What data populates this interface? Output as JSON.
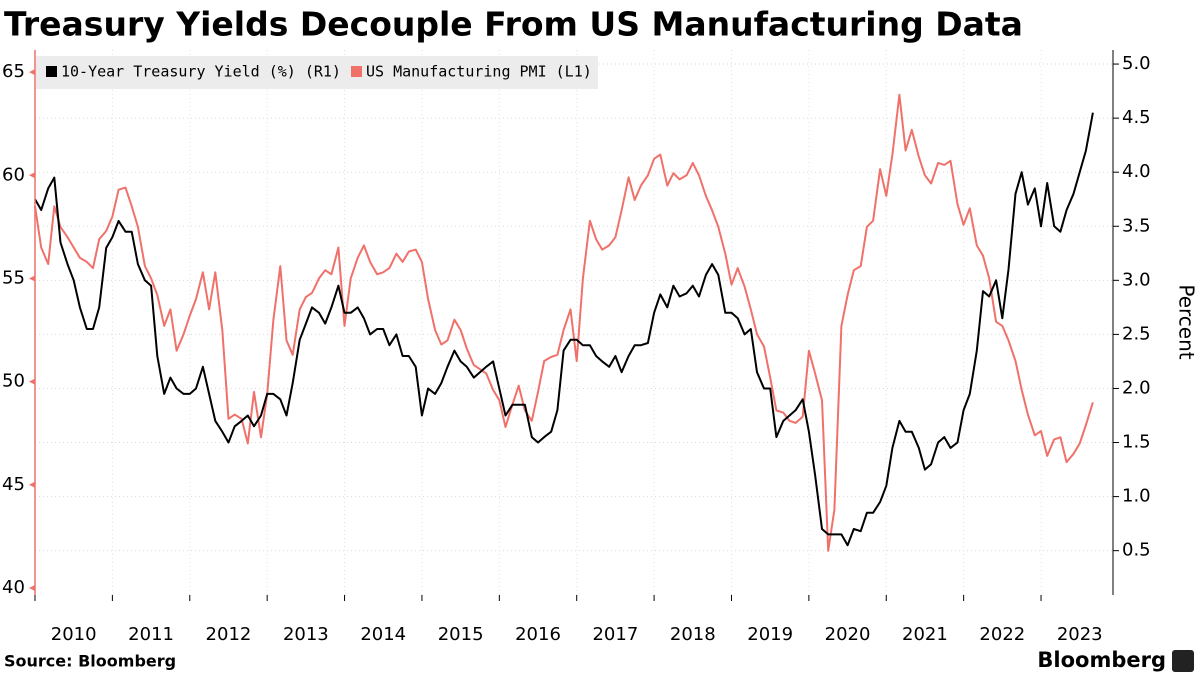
{
  "chart_data": {
    "type": "line",
    "title": "Treasury Yields Decouple From US Manufacturing Data",
    "y2label": "Percent",
    "source": "Source: Bloomberg",
    "brand": "Bloomberg",
    "x": [
      2010,
      2010.08,
      2010.17,
      2010.25,
      2010.33,
      2010.42,
      2010.5,
      2010.58,
      2010.67,
      2010.75,
      2010.83,
      2010.92,
      2011,
      2011.08,
      2011.17,
      2011.25,
      2011.33,
      2011.42,
      2011.5,
      2011.58,
      2011.67,
      2011.75,
      2011.83,
      2011.92,
      2012,
      2012.08,
      2012.17,
      2012.25,
      2012.33,
      2012.42,
      2012.5,
      2012.58,
      2012.67,
      2012.75,
      2012.83,
      2012.92,
      2013,
      2013.08,
      2013.17,
      2013.25,
      2013.33,
      2013.42,
      2013.5,
      2013.58,
      2013.67,
      2013.75,
      2013.83,
      2013.92,
      2014,
      2014.08,
      2014.17,
      2014.25,
      2014.33,
      2014.42,
      2014.5,
      2014.58,
      2014.67,
      2014.75,
      2014.83,
      2014.92,
      2015,
      2015.08,
      2015.17,
      2015.25,
      2015.33,
      2015.42,
      2015.5,
      2015.58,
      2015.67,
      2015.75,
      2015.83,
      2015.92,
      2016,
      2016.08,
      2016.17,
      2016.25,
      2016.33,
      2016.42,
      2016.5,
      2016.58,
      2016.67,
      2016.75,
      2016.83,
      2016.92,
      2017,
      2017.08,
      2017.17,
      2017.25,
      2017.33,
      2017.42,
      2017.5,
      2017.58,
      2017.67,
      2017.75,
      2017.83,
      2017.92,
      2018,
      2018.08,
      2018.17,
      2018.25,
      2018.33,
      2018.42,
      2018.5,
      2018.58,
      2018.67,
      2018.75,
      2018.83,
      2018.92,
      2019,
      2019.08,
      2019.17,
      2019.25,
      2019.33,
      2019.42,
      2019.5,
      2019.58,
      2019.67,
      2019.75,
      2019.83,
      2019.92,
      2020,
      2020.08,
      2020.17,
      2020.25,
      2020.33,
      2020.42,
      2020.5,
      2020.58,
      2020.67,
      2020.75,
      2020.83,
      2020.92,
      2021,
      2021.08,
      2021.17,
      2021.25,
      2021.33,
      2021.42,
      2021.5,
      2021.58,
      2021.67,
      2021.75,
      2021.83,
      2021.92,
      2022,
      2022.08,
      2022.17,
      2022.25,
      2022.33,
      2022.42,
      2022.5,
      2022.58,
      2022.67,
      2022.75,
      2022.83,
      2022.92,
      2023,
      2023.08,
      2023.17,
      2023.25,
      2023.33,
      2023.42,
      2023.5,
      2023.58,
      2023.67
    ],
    "series": [
      {
        "name": "10-Year Treasury Yield (%) (R1)",
        "color": "#000000",
        "axis": "y2",
        "values": [
          3.75,
          3.65,
          3.85,
          3.95,
          3.35,
          3.15,
          3.0,
          2.75,
          2.55,
          2.55,
          2.75,
          3.3,
          3.4,
          3.55,
          3.45,
          3.45,
          3.15,
          3.0,
          2.95,
          2.3,
          1.95,
          2.1,
          2.0,
          1.95,
          1.95,
          2.0,
          2.2,
          1.95,
          1.7,
          1.6,
          1.5,
          1.65,
          1.7,
          1.75,
          1.65,
          1.75,
          1.95,
          1.95,
          1.9,
          1.75,
          2.05,
          2.45,
          2.6,
          2.75,
          2.7,
          2.6,
          2.75,
          2.95,
          2.7,
          2.7,
          2.75,
          2.65,
          2.5,
          2.55,
          2.55,
          2.4,
          2.5,
          2.3,
          2.3,
          2.2,
          1.75,
          2.0,
          1.95,
          2.05,
          2.2,
          2.35,
          2.25,
          2.2,
          2.1,
          2.15,
          2.2,
          2.25,
          2.0,
          1.75,
          1.85,
          1.85,
          1.85,
          1.55,
          1.5,
          1.55,
          1.6,
          1.8,
          2.35,
          2.45,
          2.45,
          2.4,
          2.4,
          2.3,
          2.25,
          2.2,
          2.3,
          2.15,
          2.3,
          2.4,
          2.4,
          2.42,
          2.7,
          2.87,
          2.75,
          2.95,
          2.85,
          2.88,
          2.95,
          2.85,
          3.05,
          3.15,
          3.05,
          2.7,
          2.7,
          2.65,
          2.5,
          2.55,
          2.15,
          2.0,
          2.0,
          1.55,
          1.7,
          1.75,
          1.8,
          1.9,
          1.6,
          1.2,
          0.7,
          0.65,
          0.65,
          0.65,
          0.55,
          0.7,
          0.68,
          0.85,
          0.85,
          0.95,
          1.1,
          1.45,
          1.7,
          1.6,
          1.6,
          1.45,
          1.25,
          1.3,
          1.5,
          1.55,
          1.45,
          1.5,
          1.8,
          1.95,
          2.35,
          2.9,
          2.85,
          3.0,
          2.65,
          3.1,
          3.8,
          4.0,
          3.7,
          3.85,
          3.5,
          3.9,
          3.5,
          3.45,
          3.65,
          3.8,
          4.0,
          4.2,
          4.55
        ]
      },
      {
        "name": "US Manufacturing PMI (L1)",
        "color": "#f0716a",
        "axis": "y",
        "values": [
          58.5,
          56.5,
          55.7,
          58.5,
          57.5,
          57.0,
          56.5,
          56.0,
          55.8,
          55.5,
          56.9,
          57.3,
          58.0,
          59.3,
          59.4,
          58.5,
          57.5,
          55.6,
          55.0,
          54.2,
          52.7,
          53.5,
          51.5,
          52.3,
          53.2,
          54.0,
          55.3,
          53.5,
          55.3,
          52.5,
          48.2,
          48.4,
          48.2,
          47.0,
          49.5,
          47.3,
          49.4,
          53.0,
          55.6,
          52.0,
          51.3,
          53.5,
          54.1,
          54.3,
          55.0,
          55.4,
          55.2,
          56.5,
          52.7,
          55.0,
          56.0,
          56.6,
          55.8,
          55.2,
          55.3,
          55.5,
          56.2,
          55.8,
          56.3,
          56.4,
          55.8,
          54.0,
          52.5,
          51.8,
          52.0,
          53.0,
          52.5,
          51.6,
          50.8,
          50.6,
          50.4,
          49.6,
          49.1,
          47.8,
          48.9,
          49.8,
          48.6,
          48.1,
          49.5,
          51.0,
          51.2,
          51.3,
          52.5,
          53.5,
          51.0,
          55.0,
          57.8,
          56.9,
          56.4,
          56.6,
          57.0,
          58.3,
          59.9,
          58.8,
          59.5,
          60.0,
          60.8,
          61.0,
          59.5,
          60.1,
          59.8,
          60.0,
          60.6,
          60.0,
          59.0,
          58.3,
          57.5,
          56.2,
          54.7,
          55.5,
          54.6,
          53.5,
          52.3,
          51.7,
          50.2,
          48.6,
          48.5,
          48.1,
          48.0,
          48.3,
          51.5,
          50.4,
          49.1,
          41.8,
          43.8,
          52.7,
          54.2,
          55.4,
          55.6,
          57.5,
          57.8,
          60.3,
          59.0,
          61.0,
          63.9,
          61.2,
          62.2,
          60.9,
          60.0,
          59.6,
          60.6,
          60.5,
          60.7,
          58.6,
          57.6,
          58.4,
          56.6,
          56.1,
          55.0,
          52.9,
          52.7,
          52.0,
          51.0,
          49.6,
          48.4,
          47.4,
          47.6,
          46.4,
          47.2,
          47.3,
          46.1,
          46.5,
          47.0,
          47.9,
          49.0
        ]
      }
    ],
    "xlim": [
      2010,
      2023.93
    ],
    "xticks": [
      2010,
      2011,
      2012,
      2013,
      2014,
      2015,
      2016,
      2017,
      2018,
      2019,
      2020,
      2021,
      2022,
      2023
    ],
    "ylim": [
      39.66,
      66.07
    ],
    "yticks": [
      40,
      45,
      50,
      55,
      60,
      65
    ],
    "y2lim": [
      0.09,
      5.13
    ],
    "y2ticks": [
      0.5,
      {
        "value": 1.0,
        "label": "1.0"
      },
      1.5,
      {
        "value": 2.0,
        "label": "2.0"
      },
      2.5,
      {
        "value": 3.0,
        "label": "3.0"
      },
      3.5,
      {
        "value": 4.0,
        "label": "4.0"
      },
      4.5,
      {
        "value": 5.0,
        "label": "5.0"
      }
    ],
    "grid": true,
    "legend": "top-left"
  }
}
